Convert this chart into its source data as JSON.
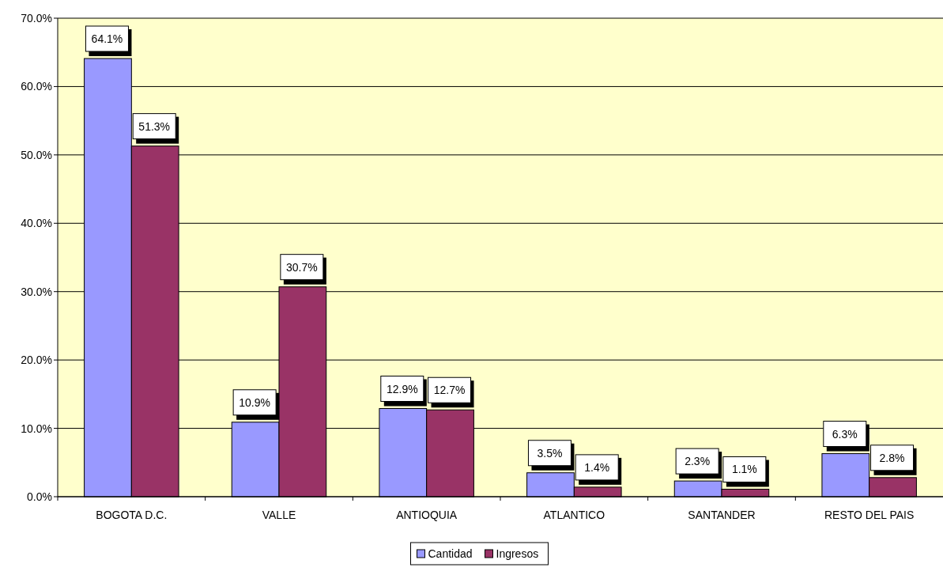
{
  "chart_data": {
    "type": "bar",
    "categories": [
      "BOGOTA D.C.",
      "VALLE",
      "ANTIOQUIA",
      "ATLANTICO",
      "SANTANDER",
      "RESTO DEL PAIS"
    ],
    "series": [
      {
        "name": "Cantidad",
        "color": "#9999ff",
        "values": [
          64.1,
          10.9,
          12.9,
          3.5,
          2.3,
          6.3
        ],
        "value_labels": [
          "64.1%",
          "10.9%",
          "12.9%",
          "3.5%",
          "2.3%",
          "6.3%"
        ]
      },
      {
        "name": "Ingresos",
        "color": "#993366",
        "values": [
          51.3,
          30.7,
          12.7,
          1.4,
          1.1,
          2.8
        ],
        "value_labels": [
          "51.3%",
          "30.7%",
          "12.7%",
          "1.4%",
          "1.1%",
          "2.8%"
        ]
      }
    ],
    "ylim": [
      0,
      70
    ],
    "yticks": [
      {
        "value": 0,
        "label": "0.0%"
      },
      {
        "value": 10,
        "label": "10.0%"
      },
      {
        "value": 20,
        "label": "20.0%"
      },
      {
        "value": 30,
        "label": "30.0%"
      },
      {
        "value": 40,
        "label": "40.0%"
      },
      {
        "value": 50,
        "label": "50.0%"
      },
      {
        "value": 60,
        "label": "60.0%"
      },
      {
        "value": 70,
        "label": "70.0%"
      }
    ],
    "grid": "y",
    "legend": "bottom"
  }
}
